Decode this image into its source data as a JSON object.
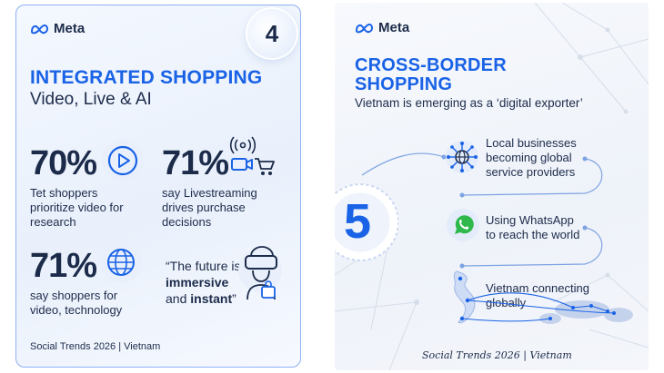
{
  "left_card": {
    "brand": "Meta",
    "number": "4",
    "title": "INTEGRATED SHOPPING",
    "subtitle": "Video, Live & AI",
    "stats": [
      {
        "pct": "70%",
        "desc_line1": "Tet shoppers",
        "desc_line2": "prioritize video for",
        "desc_line3": "research",
        "icon": "play-icon"
      },
      {
        "pct": "71%",
        "desc_line1": "say Livestreaming",
        "desc_line2": "drives purchase",
        "desc_line3": "decisions",
        "icon": "livestream-cart-icon"
      },
      {
        "pct": "71%",
        "desc_line1": "say shoppers for",
        "desc_line2": "video, technology",
        "icon": "globe-icon"
      }
    ],
    "quote": {
      "line1": "“The future is",
      "line2": "immersive",
      "line3_pre": "and ",
      "line3_bold": "instant",
      "line3_post": "”",
      "icon": "vr-headset-icon"
    },
    "footer": "Social Trends 2026 | Vietnam"
  },
  "right_card": {
    "brand": "Meta",
    "title_line1": "CROSS-BORDER",
    "title_line2": "SHOPPING",
    "subtitle": "Vietnam is emerging as a ‘digital exporter’",
    "number": "5",
    "items": [
      {
        "line1": "Local businesses",
        "line2": "becoming global",
        "line3": "service providers",
        "icon": "network-globe-icon"
      },
      {
        "line1": "Using WhatsApp",
        "line2": "to reach the world",
        "icon": "whatsapp-icon"
      },
      {
        "line1": "Vietnam connecting",
        "line2": "globally",
        "icon": "world-map-icon"
      }
    ],
    "footer": "Social Trends 2026 | Vietnam"
  },
  "colors": {
    "accent": "#1a63e6",
    "navy": "#1c2b4a",
    "border": "#8fb1f2",
    "whatsapp": "#2fb84c"
  }
}
